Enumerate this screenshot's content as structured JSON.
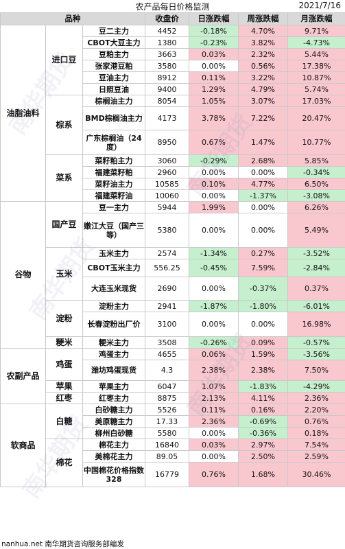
{
  "title": "农产品每日价格监测",
  "date": "2021/7/16",
  "headers": [
    "品种",
    "收盘价",
    "日涨跌幅",
    "周涨跌幅",
    "月涨跌幅"
  ],
  "watermark": "南华期货",
  "footer": "nanhua.net 南华期货咨询服务部编发",
  "groups": [
    {
      "category": "油脂油料",
      "subgroups": [
        {
          "name": "进口豆",
          "rows": [
            {
              "product": "豆二主力",
              "close": "4452",
              "day": "-0.18%",
              "week": "4.70%",
              "month": "9.71%"
            },
            {
              "product": "CBOT大豆主力",
              "close": "1380",
              "day": "-0.23%",
              "week": "3.82%",
              "month": "-4.73%"
            },
            {
              "product": "豆粕主力",
              "close": "3663",
              "day": "0.03%",
              "week": "2.32%",
              "month": "5.44%"
            },
            {
              "product": "张家港豆粕",
              "close": "3580",
              "day": "0.00%",
              "week": "0.56%",
              "month": "17.38%"
            },
            {
              "product": "豆油主力",
              "close": "8912",
              "day": "0.11%",
              "week": "3.22%",
              "month": "10.87%"
            },
            {
              "product": "日照豆油",
              "close": "9400",
              "day": "1.29%",
              "week": "4.79%",
              "month": "5.74%"
            }
          ]
        },
        {
          "name": "棕系",
          "rows": [
            {
              "product": "棕榈油主力",
              "close": "8054",
              "day": "1.05%",
              "week": "3.07%",
              "month": "17.03%"
            },
            {
              "product": "BMD棕榈油主力",
              "close": "4173",
              "day": "3.78%",
              "week": "7.22%",
              "month": "20.47%"
            },
            {
              "product": "广东棕榈油（24度）",
              "close": "8950",
              "day": "0.67%",
              "week": "1.47%",
              "month": "10.77%"
            }
          ]
        },
        {
          "name": "菜系",
          "rows": [
            {
              "product": "菜籽粕主力",
              "close": "3060",
              "day": "-0.29%",
              "week": "2.68%",
              "month": "5.85%"
            },
            {
              "product": "福建菜籽粕",
              "close": "2960",
              "day": "0.00%",
              "week": "0.00%",
              "month": "-0.34%"
            },
            {
              "product": "菜籽油主力",
              "close": "10585",
              "day": "0.10%",
              "week": "4.77%",
              "month": "6.50%"
            },
            {
              "product": "福建菜籽油",
              "close": "10060",
              "day": "0.00%",
              "week": "-1.37%",
              "month": "-3.08%"
            }
          ]
        }
      ]
    },
    {
      "category": "谷物",
      "subgroups": [
        {
          "name": "国产豆",
          "rows": [
            {
              "product": "豆一主力",
              "close": "5944",
              "day": "1.99%",
              "week": "0.00%",
              "month": "6.26%"
            },
            {
              "product": "嫩江大豆（国产三等）",
              "close": "5380",
              "day": "0.00%",
              "week": "0.00%",
              "month": "5.49%"
            }
          ]
        },
        {
          "name": "玉米",
          "rows": [
            {
              "product": "玉米主力",
              "close": "2574",
              "day": "-1.34%",
              "week": "0.27%",
              "month": "-3.52%"
            },
            {
              "product": "CBOT玉米主力",
              "close": "556.25",
              "day": "-0.45%",
              "week": "7.59%",
              "month": "-2.84%"
            },
            {
              "product": "大连玉米现货",
              "close": "2690",
              "day": "0.00%",
              "week": "-0.37%",
              "month": "0.37%"
            }
          ]
        },
        {
          "name": "淀粉",
          "rows": [
            {
              "product": "淀粉主力",
              "close": "2941",
              "day": "-1.87%",
              "week": "-1.80%",
              "month": "-6.01%"
            },
            {
              "product": "长春淀粉出厂价",
              "close": "3100",
              "day": "0.00%",
              "week": "0.00%",
              "month": "16.98%"
            }
          ]
        },
        {
          "name": "粳米",
          "rows": [
            {
              "product": "粳米主力",
              "close": "3508",
              "day": "-0.26%",
              "week": "0.09%",
              "month": "-0.57%"
            }
          ]
        }
      ]
    },
    {
      "category": "农副产品",
      "subgroups": [
        {
          "name": "鸡蛋",
          "rows": [
            {
              "product": "鸡蛋主力",
              "close": "4655",
              "day": "0.06%",
              "week": "1.59%",
              "month": "-3.56%"
            },
            {
              "product": "潍坊鸡蛋现货",
              "close": "4.3",
              "day": "2.38%",
              "week": "2.38%",
              "month": "7.50%"
            }
          ]
        },
        {
          "name": "苹果",
          "rows": [
            {
              "product": "苹果主力",
              "close": "6047",
              "day": "1.07%",
              "week": "-1.83%",
              "month": "-4.29%"
            }
          ]
        },
        {
          "name": "红枣",
          "rows": [
            {
              "product": "红枣主力",
              "close": "8875",
              "day": "2.13%",
              "week": "4.11%",
              "month": "2.36%"
            }
          ]
        }
      ]
    },
    {
      "category": "软商品",
      "subgroups": [
        {
          "name": "白糖",
          "rows": [
            {
              "product": "白砂糖主力",
              "close": "5526",
              "day": "0.11%",
              "week": "0.16%",
              "month": "2.20%"
            },
            {
              "product": "美原糖主力",
              "close": "17.33",
              "day": "2.36%",
              "week": "-0.69%",
              "month": "0.76%"
            },
            {
              "product": "柳州白砂糖",
              "close": "5580",
              "day": "0.00%",
              "week": "-0.36%",
              "month": "0.18%"
            }
          ]
        },
        {
          "name": "棉花",
          "rows": [
            {
              "product": "棉花主力",
              "close": "16840",
              "day": "0.03%",
              "week": "2.97%",
              "month": "7.54%"
            },
            {
              "product": "美棉花主力",
              "close": "89.05",
              "day": "0.00%",
              "week": "2.50%",
              "month": "2.59%"
            },
            {
              "product": "中国棉花价格指数328",
              "close": "16779",
              "day": "0.76%",
              "week": "1.68%",
              "month": "30.46%"
            }
          ]
        }
      ]
    }
  ]
}
